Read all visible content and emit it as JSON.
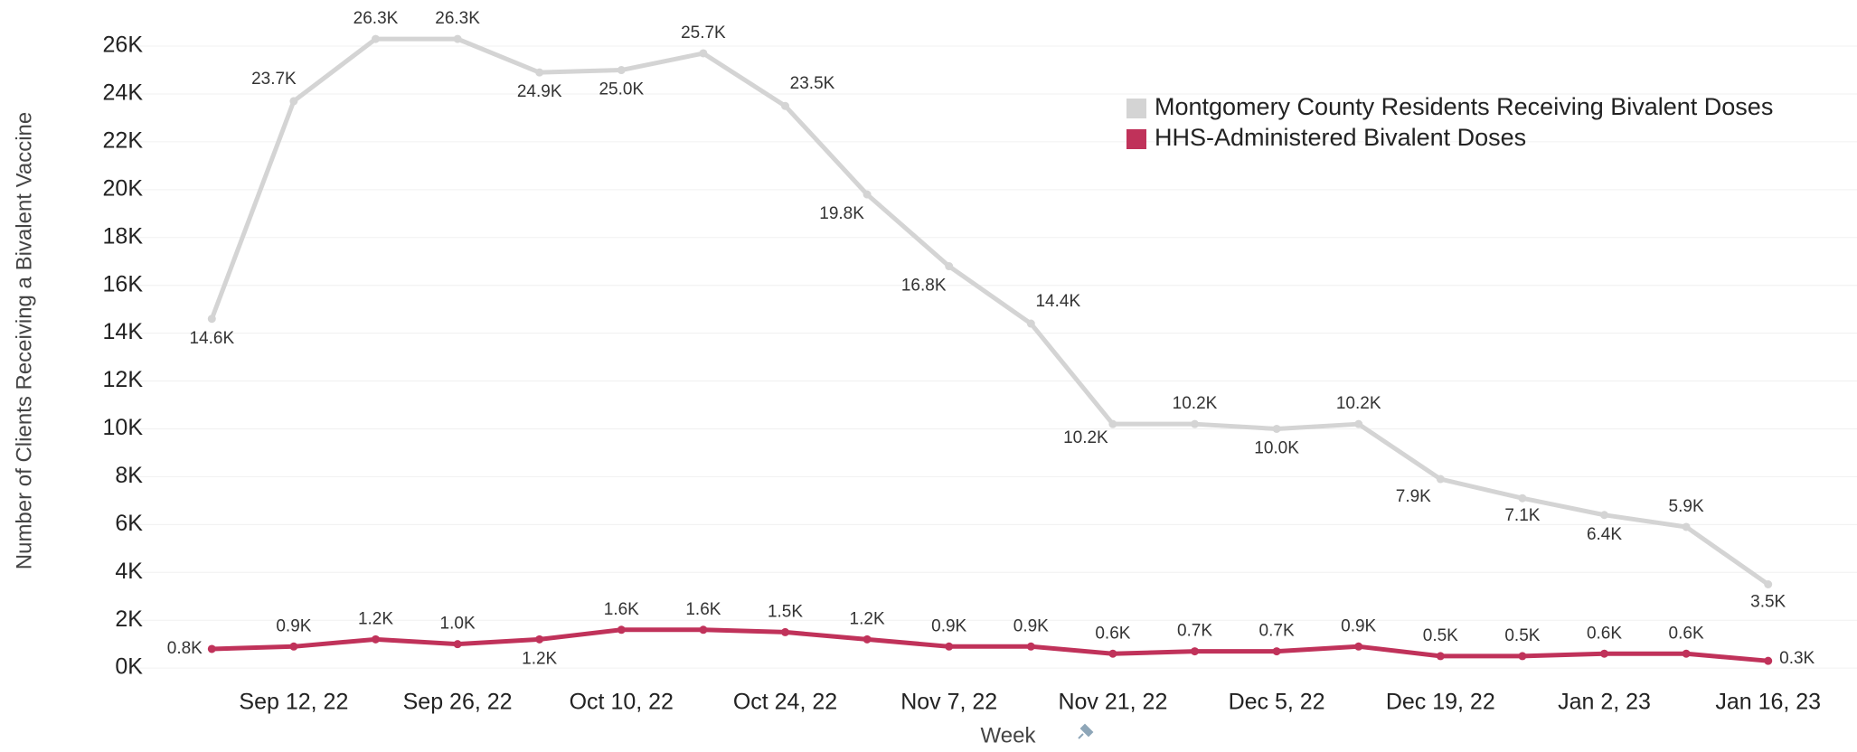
{
  "chart_data": {
    "type": "line",
    "y_label": "Number of Clients Receiving a Bivalent Vaccine",
    "x_label": "Week",
    "categories": [
      null,
      "Sep 12, 22",
      null,
      "Sep 26, 22",
      null,
      "Oct 10, 22",
      null,
      "Oct 24, 22",
      null,
      "Nov 7, 22",
      null,
      "Nov 21, 22",
      null,
      "Dec 5, 22",
      null,
      "Dec 19, 22",
      null,
      "Jan 2, 23",
      null,
      "Jan 16, 23"
    ],
    "series": [
      {
        "name": "Montgomery County Residents Receiving Bivalent Doses",
        "color": "#d4d4d4",
        "values": [
          14600,
          23700,
          26300,
          26300,
          24900,
          25000,
          25700,
          23500,
          19800,
          16800,
          14400,
          10200,
          10200,
          10000,
          10200,
          7900,
          7100,
          6400,
          5900,
          3500
        ],
        "value_labels": [
          "14.6K",
          "23.7K",
          "26.3K",
          "26.3K",
          "24.9K",
          "25.0K",
          "25.7K",
          "23.5K",
          "19.8K",
          "16.8K",
          "14.4K",
          "10.2K",
          "10.2K",
          "10.0K",
          "10.2K",
          "7.9K",
          "7.1K",
          "6.4K",
          "5.9K",
          "3.5K"
        ]
      },
      {
        "name": "HHS-Administered Bivalent Doses",
        "color": "#c0325a",
        "values": [
          800,
          900,
          1200,
          1000,
          1200,
          1600,
          1600,
          1500,
          1200,
          900,
          900,
          600,
          700,
          700,
          900,
          500,
          500,
          600,
          600,
          300
        ],
        "value_labels": [
          "0.8K",
          "0.9K",
          "1.2K",
          "1.0K",
          "1.2K",
          "1.6K",
          "1.6K",
          "1.5K",
          "1.2K",
          "0.9K",
          "0.9K",
          "0.6K",
          "0.7K",
          "0.7K",
          "0.9K",
          "0.5K",
          "0.5K",
          "0.6K",
          "0.6K",
          "0.3K"
        ]
      }
    ],
    "ylim": [
      -600,
      27400
    ],
    "yticks": [
      {
        "value": 0,
        "label": "0K"
      },
      {
        "value": 2000,
        "label": "2K"
      },
      {
        "value": 4000,
        "label": "4K"
      },
      {
        "value": 6000,
        "label": "6K"
      },
      {
        "value": 8000,
        "label": "8K"
      },
      {
        "value": 10000,
        "label": "10K"
      },
      {
        "value": 12000,
        "label": "12K"
      },
      {
        "value": 14000,
        "label": "14K"
      },
      {
        "value": 16000,
        "label": "16K"
      },
      {
        "value": 18000,
        "label": "18K"
      },
      {
        "value": 20000,
        "label": "20K"
      },
      {
        "value": 22000,
        "label": "22K"
      },
      {
        "value": 24000,
        "label": "24K"
      },
      {
        "value": 26000,
        "label": "26K"
      }
    ],
    "grid": true,
    "legend": "top-right"
  }
}
